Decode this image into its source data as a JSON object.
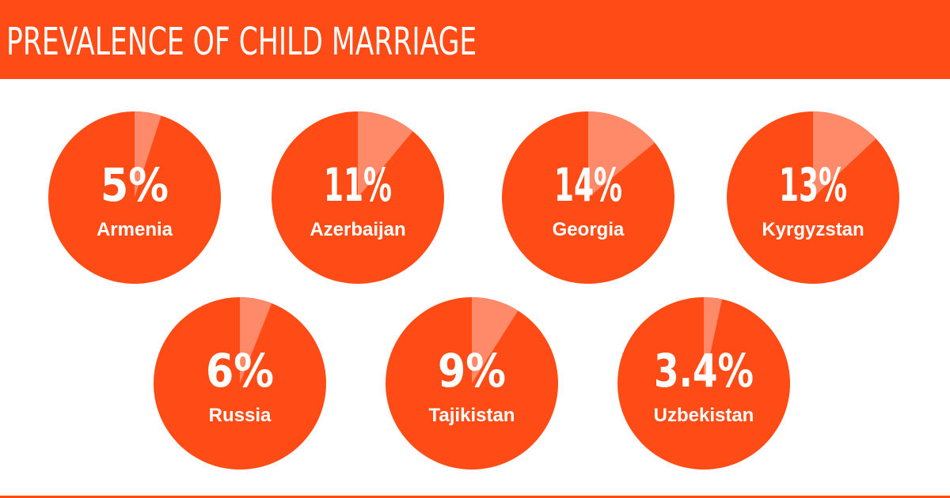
{
  "title": "PREVALENCE OF CHILD MARRIAGE",
  "colors": {
    "header": "#ff4c16",
    "circle": "#ff4c16",
    "slice": "#ff8a6a",
    "text": "#ffffff"
  },
  "chart_data": {
    "type": "pie",
    "title": "PREVALENCE OF CHILD MARRIAGE",
    "unit": "%",
    "items": [
      {
        "label": "Armenia",
        "value": 5,
        "display": "5%"
      },
      {
        "label": "Azerbaijan",
        "value": 11,
        "display": "11%"
      },
      {
        "label": "Georgia",
        "value": 14,
        "display": "14%"
      },
      {
        "label": "Kyrgyzstan",
        "value": 13,
        "display": "13%"
      },
      {
        "label": "Russia",
        "value": 6,
        "display": "6%"
      },
      {
        "label": "Tajikistan",
        "value": 9,
        "display": "9%"
      },
      {
        "label": "Uzbekistan",
        "value": 3.4,
        "display": "3.4%"
      }
    ]
  }
}
